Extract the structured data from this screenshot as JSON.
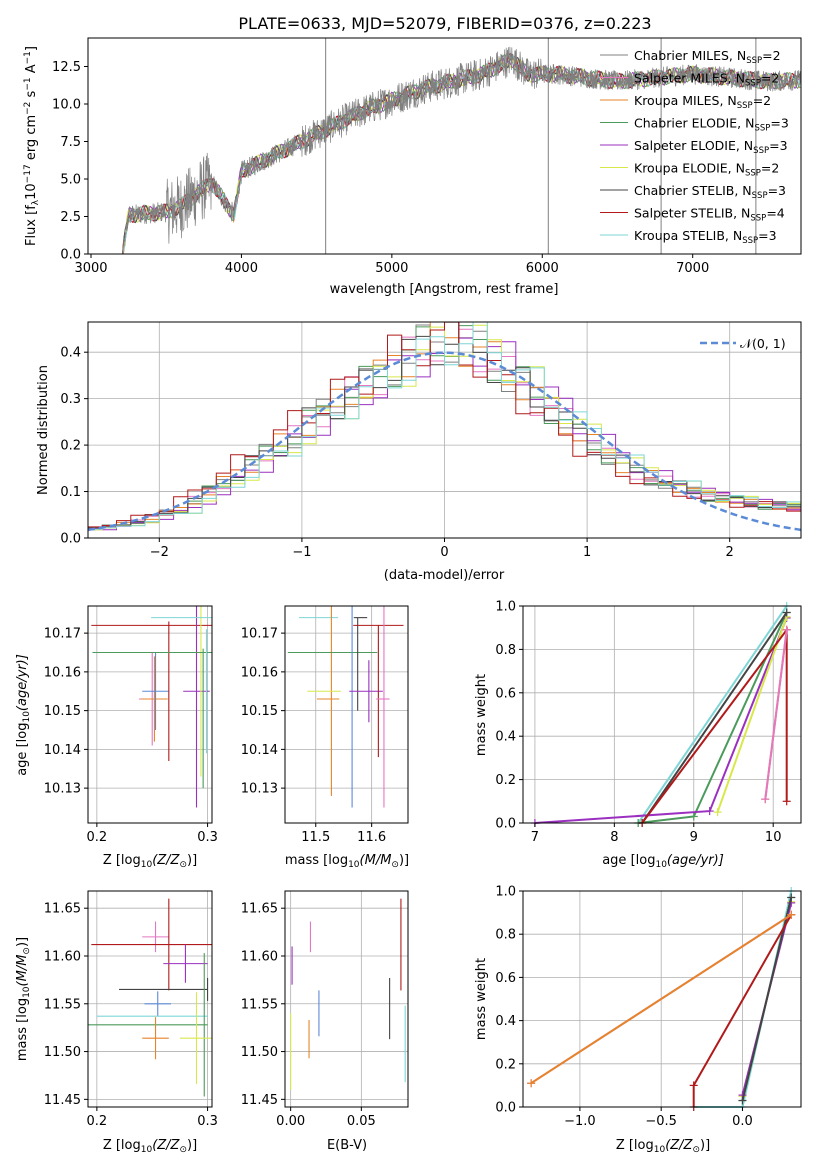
{
  "chart_data": [
    {
      "id": "spectrum",
      "type": "line",
      "title": "PLATE=0633, MJD=52079, FIBERID=0376, z=0.223",
      "xlabel": "wavelength [Angstrom, rest frame]",
      "ylabel_main": "Flux [f",
      "ylabel_sub": "λ",
      "ylabel_rest": "10",
      "ylabel_exp1": "−17",
      "ylabel_mid": " erg cm",
      "ylabel_exp2": "−2",
      "ylabel_mid2": " s",
      "ylabel_exp3": "−1",
      "ylabel_mid3": " A",
      "ylabel_exp4": "−1",
      "ylabel_end": "]",
      "xlim": [
        2980,
        7720
      ],
      "ylim": [
        0,
        14.4
      ],
      "xticks": [
        3000,
        4000,
        5000,
        6000,
        7000
      ],
      "yticks": [
        0.0,
        2.5,
        5.0,
        7.5,
        10.0,
        12.5
      ],
      "ytick_labels": [
        "0.0",
        "2.5",
        "5.0",
        "7.5",
        "10.0",
        "12.5"
      ],
      "grid": false,
      "legend_position": "right",
      "data_color": "#808080",
      "data_knots_x": [
        3210,
        3250,
        3500,
        3600,
        3800,
        3950,
        4000,
        4400,
        4800,
        5200,
        5600,
        5800,
        5900,
        6100,
        6500,
        7000,
        7500,
        7720
      ],
      "data_knots_y": [
        0.0,
        2.6,
        2.8,
        3.2,
        4.8,
        2.6,
        5.5,
        7.5,
        9.5,
        11.0,
        12.0,
        13.0,
        12.0,
        12.0,
        11.5,
        12.0,
        11.5,
        11.6
      ],
      "vertical_lines_x": [
        4560,
        6040,
        6790,
        7420
      ],
      "series": [
        {
          "name": "Chabrier MILES",
          "nssp": "2",
          "color": "#808080"
        },
        {
          "name": "Salpeter MILES",
          "nssp": "2",
          "color": "#e377c2"
        },
        {
          "name": "Kroupa MILES",
          "nssp": "2",
          "color": "#e6842a"
        },
        {
          "name": "Chabrier ELODIE",
          "nssp": "3",
          "color": "#4c9a5c"
        },
        {
          "name": "Salpeter ELODIE",
          "nssp": "3",
          "color": "#9b30c0"
        },
        {
          "name": "Kroupa ELODIE",
          "nssp": "2",
          "color": "#d8e84a"
        },
        {
          "name": "Chabrier STELIB",
          "nssp": "3",
          "color": "#444444"
        },
        {
          "name": "Salpeter STELIB",
          "nssp": "4",
          "color": "#b01a1a"
        },
        {
          "name": "Kroupa STELIB",
          "nssp": "3",
          "color": "#7fd6d6"
        }
      ],
      "legend_suffix_prefix": ", N",
      "legend_suffix_sub": "SSP",
      "legend_suffix_eq": "="
    },
    {
      "id": "residuals",
      "type": "line",
      "xlabel": "(data-model)/error",
      "ylabel": "Normed distribution",
      "xlim": [
        -2.5,
        2.5
      ],
      "ylim": [
        0,
        0.465
      ],
      "xticks": [
        -2,
        -1,
        0,
        1,
        2
      ],
      "xtick_labels": [
        "−2",
        "−1",
        "0",
        "1",
        "2"
      ],
      "yticks": [
        0.0,
        0.1,
        0.2,
        0.3,
        0.4
      ],
      "ytick_labels": [
        "0.0",
        "0.1",
        "0.2",
        "0.3",
        "0.4"
      ],
      "grid": true,
      "legend_position": "top-right",
      "normal_label": "𝒩(0, 1)",
      "normal_color": "#5b8bd6",
      "bin_width": 0.1,
      "hist_shape": [
        0.02,
        0.025,
        0.03,
        0.035,
        0.045,
        0.055,
        0.06,
        0.08,
        0.1,
        0.12,
        0.14,
        0.16,
        0.18,
        0.2,
        0.22,
        0.25,
        0.27,
        0.29,
        0.31,
        0.33,
        0.35,
        0.37,
        0.39,
        0.41,
        0.42,
        0.43,
        0.42,
        0.4,
        0.38,
        0.35,
        0.33,
        0.3,
        0.28,
        0.25,
        0.22,
        0.2,
        0.18,
        0.16,
        0.14,
        0.13,
        0.12,
        0.11,
        0.1,
        0.09,
        0.085,
        0.08,
        0.075,
        0.07,
        0.07,
        0.065
      ]
    },
    {
      "id": "age_vs_Z",
      "type": "errorbar",
      "xlabel": "Z [log",
      "xlabel_sub": "10",
      "xlabel_rest": "(Z/Z",
      "xlabel_sun": "⊙",
      "xlabel_end": ")]",
      "ylabel": "age  [log",
      "ylabel_sub": "10",
      "ylabel_rest": "(age/yr)]",
      "xlim": [
        0.192,
        0.304
      ],
      "ylim": [
        10.121,
        10.177
      ],
      "xticks": [
        0.2,
        0.3
      ],
      "xtick_labels": [
        "0.2",
        "0.3"
      ],
      "yticks": [
        10.13,
        10.14,
        10.15,
        10.16,
        10.17
      ],
      "ytick_labels": [
        "10.13",
        "10.14",
        "10.15",
        "10.16",
        "10.17"
      ],
      "grid": true,
      "points": [
        {
          "x": 0.25,
          "y": 10.153,
          "xerr": 0.012,
          "yerr": 0.012,
          "color": "#e377c2"
        },
        {
          "x": 0.252,
          "y": 10.153,
          "xerr": 0.012,
          "yerr": 0.011,
          "color": "#e6842a"
        },
        {
          "x": 0.253,
          "y": 10.155,
          "xerr": 0.012,
          "yerr": 0.01,
          "color": "#5b8bd6"
        },
        {
          "x": 0.265,
          "y": 10.172,
          "xerr": 0.07,
          "yerr": 0.0,
          "color": "#b01a1a"
        },
        {
          "x": 0.265,
          "y": 10.155,
          "xerr": 0.0,
          "yerr": 0.018,
          "color": "#b01a1a"
        },
        {
          "x": 0.29,
          "y": 10.155,
          "xerr": 0.012,
          "yerr": 0.03,
          "color": "#9b30c0"
        },
        {
          "x": 0.294,
          "y": 10.155,
          "xerr": 0.0,
          "yerr": 0.022,
          "color": "#d8e84a"
        },
        {
          "x": 0.296,
          "y": 10.165,
          "xerr": 0.1,
          "yerr": 0.0,
          "color": "#4c9a5c"
        },
        {
          "x": 0.296,
          "y": 10.148,
          "xerr": 0.0,
          "yerr": 0.018,
          "color": "#4c9a5c"
        },
        {
          "x": 0.299,
          "y": 10.174,
          "xerr": 0.05,
          "yerr": 0.0,
          "color": "#7fd6d6"
        },
        {
          "x": 0.299,
          "y": 10.155,
          "xerr": 0.0,
          "yerr": 0.016,
          "color": "#7fd6d6"
        }
      ]
    },
    {
      "id": "age_vs_mass",
      "type": "errorbar",
      "xlabel": "mass [log",
      "xlabel_sub": "10",
      "xlabel_rest": "(M/M",
      "xlabel_sun": "⊙",
      "xlabel_end": ")]",
      "xlim": [
        11.445,
        11.665
      ],
      "ylim": [
        10.121,
        10.177
      ],
      "xticks": [
        11.5,
        11.6
      ],
      "xtick_labels": [
        "11.5",
        "11.6"
      ],
      "yticks": [
        10.13,
        10.14,
        10.15,
        10.16,
        10.17
      ],
      "ytick_labels": [
        "10.13",
        "10.14",
        "10.15",
        "10.16",
        "10.17"
      ],
      "grid": true,
      "points": [
        {
          "x": 11.505,
          "y": 10.174,
          "xerr": 0.035,
          "yerr": 0.0,
          "color": "#7fd6d6"
        },
        {
          "x": 11.522,
          "y": 10.153,
          "xerr": 0.02,
          "yerr": 0.0,
          "color": "#e6842a"
        },
        {
          "x": 11.528,
          "y": 10.153,
          "xerr": 0.0,
          "yerr": 0.025,
          "color": "#e6842a"
        },
        {
          "x": 11.515,
          "y": 10.155,
          "xerr": 0.03,
          "yerr": 0.0,
          "color": "#d8e84a"
        },
        {
          "x": 11.53,
          "y": 10.165,
          "xerr": 0.08,
          "yerr": 0.0,
          "color": "#4c9a5c"
        },
        {
          "x": 11.565,
          "y": 10.155,
          "xerr": 0.0,
          "yerr": 0.03,
          "color": "#5b8bd6"
        },
        {
          "x": 11.575,
          "y": 10.162,
          "xerr": 0.0,
          "yerr": 0.012,
          "color": "#444444"
        },
        {
          "x": 11.58,
          "y": 10.174,
          "xerr": 0.012,
          "yerr": 0.0,
          "color": "#444444"
        },
        {
          "x": 11.59,
          "y": 10.155,
          "xerr": 0.03,
          "yerr": 0.0,
          "color": "#9b30c0"
        },
        {
          "x": 11.595,
          "y": 10.155,
          "xerr": 0.0,
          "yerr": 0.008,
          "color": "#9b30c0"
        },
        {
          "x": 11.612,
          "y": 10.172,
          "xerr": 0.045,
          "yerr": 0.0,
          "color": "#b01a1a"
        },
        {
          "x": 11.612,
          "y": 10.155,
          "xerr": 0.0,
          "yerr": 0.017,
          "color": "#b01a1a"
        },
        {
          "x": 11.62,
          "y": 10.153,
          "xerr": 0.012,
          "yerr": 0.0,
          "color": "#e377c2"
        },
        {
          "x": 11.622,
          "y": 10.153,
          "xerr": 0.0,
          "yerr": 0.028,
          "color": "#e377c2"
        }
      ]
    },
    {
      "id": "massweight_vs_age",
      "type": "line",
      "xlabel": "age  [log",
      "xlabel_sub": "10",
      "xlabel_rest": "(age/yr)]",
      "ylabel": "mass weight",
      "xlim": [
        6.85,
        10.35
      ],
      "ylim": [
        0,
        1
      ],
      "xticks": [
        7,
        8,
        9,
        10
      ],
      "xtick_labels": [
        "7",
        "8",
        "9",
        "10"
      ],
      "yticks": [
        0.0,
        0.2,
        0.4,
        0.6,
        0.8,
        1.0
      ],
      "ytick_labels": [
        "0.0",
        "0.2",
        "0.4",
        "0.6",
        "0.8",
        "1.0"
      ],
      "grid": true,
      "series": [
        {
          "color": "#7fd6d6",
          "x": [
            8.3,
            10.17
          ],
          "y": [
            0.0,
            1.0
          ]
        },
        {
          "color": "#4c9a5c",
          "x": [
            8.3,
            9.0,
            10.17
          ],
          "y": [
            0.0,
            0.03,
            0.97
          ]
        },
        {
          "color": "#9b30c0",
          "x": [
            7.0,
            9.2,
            10.17
          ],
          "y": [
            0.0,
            0.055,
            0.945
          ]
        },
        {
          "color": "#d8e84a",
          "x": [
            9.3,
            10.17
          ],
          "y": [
            0.05,
            0.95
          ]
        },
        {
          "color": "#444444",
          "x": [
            8.35,
            10.17
          ],
          "y": [
            0.0,
            0.97
          ]
        },
        {
          "color": "#b01a1a",
          "x": [
            8.35,
            10.17,
            10.17
          ],
          "y": [
            0.0,
            0.89,
            0.1
          ]
        },
        {
          "color": "#e6842a",
          "x": [
            9.9,
            10.17
          ],
          "y": [
            0.11,
            0.89
          ]
        },
        {
          "color": "#e377c2",
          "x": [
            9.9,
            10.17
          ],
          "y": [
            0.11,
            0.89
          ]
        }
      ]
    },
    {
      "id": "mass_vs_Z",
      "type": "errorbar",
      "xlabel": "Z [log",
      "xlabel_sub": "10",
      "xlabel_rest": "(Z/Z",
      "xlabel_sun": "⊙",
      "xlabel_end": ")]",
      "ylabel": "mass [log",
      "ylabel_sub": "10",
      "ylabel_rest": "(M/M",
      "ylabel_sun": "⊙",
      "ylabel_end": ")]",
      "xlim": [
        0.192,
        0.304
      ],
      "ylim": [
        11.442,
        11.668
      ],
      "xticks": [
        0.2,
        0.3
      ],
      "xtick_labels": [
        "0.2",
        "0.3"
      ],
      "yticks": [
        11.45,
        11.5,
        11.55,
        11.6,
        11.65
      ],
      "ytick_labels": [
        "11.45",
        "11.50",
        "11.55",
        "11.60",
        "11.65"
      ],
      "grid": true,
      "points": [
        {
          "x": 0.253,
          "y": 11.62,
          "xerr": 0.012,
          "yerr": 0.016,
          "color": "#e377c2"
        },
        {
          "x": 0.265,
          "y": 11.612,
          "xerr": 0.07,
          "yerr": 0.048,
          "color": "#b01a1a"
        },
        {
          "x": 0.28,
          "y": 11.592,
          "xerr": 0.02,
          "yerr": 0.02,
          "color": "#9b30c0"
        },
        {
          "x": 0.26,
          "y": 11.565,
          "xerr": 0.04,
          "yerr": 0.0,
          "color": "#444444"
        },
        {
          "x": 0.3,
          "y": 11.565,
          "xerr": 0.0,
          "yerr": 0.012,
          "color": "#444444"
        },
        {
          "x": 0.255,
          "y": 11.55,
          "xerr": 0.012,
          "yerr": 0.013,
          "color": "#5b8bd6"
        },
        {
          "x": 0.25,
          "y": 11.537,
          "xerr": 0.05,
          "yerr": 0.0,
          "color": "#7fd6d6"
        },
        {
          "x": 0.245,
          "y": 11.528,
          "xerr": 0.055,
          "yerr": 0.0,
          "color": "#4c9a5c"
        },
        {
          "x": 0.297,
          "y": 11.528,
          "xerr": 0.0,
          "yerr": 0.075,
          "color": "#4c9a5c"
        },
        {
          "x": 0.253,
          "y": 11.514,
          "xerr": 0.012,
          "yerr": 0.022,
          "color": "#e6842a"
        },
        {
          "x": 0.29,
          "y": 11.514,
          "xerr": 0.015,
          "yerr": 0.048,
          "color": "#d8e84a"
        }
      ]
    },
    {
      "id": "mass_vs_ebv",
      "type": "errorbar",
      "xlabel": "E(B-V)",
      "xlim": [
        -0.004,
        0.083
      ],
      "ylim": [
        11.442,
        11.668
      ],
      "xticks": [
        0.0,
        0.05
      ],
      "xtick_labels": [
        "0.00",
        "0.05"
      ],
      "yticks": [
        11.45,
        11.5,
        11.55,
        11.6,
        11.65
      ],
      "ytick_labels": [
        "11.45",
        "11.50",
        "11.55",
        "11.60",
        "11.65"
      ],
      "grid": true,
      "points": [
        {
          "x": 0.0,
          "y": 11.5,
          "xerr": 0.0,
          "yerr": 0.04,
          "color": "#d8e84a"
        },
        {
          "x": 0.001,
          "y": 11.59,
          "xerr": 0.0,
          "yerr": 0.02,
          "color": "#9b30c0"
        },
        {
          "x": 0.013,
          "y": 11.513,
          "xerr": 0.0,
          "yerr": 0.02,
          "color": "#e6842a"
        },
        {
          "x": 0.014,
          "y": 11.62,
          "xerr": 0.0,
          "yerr": 0.016,
          "color": "#e377c2"
        },
        {
          "x": 0.02,
          "y": 11.54,
          "xerr": 0.0,
          "yerr": 0.024,
          "color": "#5b8bd6"
        },
        {
          "x": 0.07,
          "y": 11.545,
          "xerr": 0.0,
          "yerr": 0.032,
          "color": "#444444"
        },
        {
          "x": 0.078,
          "y": 11.612,
          "xerr": 0.0,
          "yerr": 0.048,
          "color": "#b01a1a"
        },
        {
          "x": 0.081,
          "y": 11.508,
          "xerr": 0.0,
          "yerr": 0.04,
          "color": "#7fd6d6"
        }
      ]
    },
    {
      "id": "massweight_vs_Z",
      "type": "line",
      "xlabel": "Z [log",
      "xlabel_sub": "10",
      "xlabel_rest": "(Z/Z",
      "xlabel_sun": "⊙",
      "xlabel_end": ")]",
      "ylabel": "mass weight",
      "xlim": [
        -1.35,
        0.36
      ],
      "ylim": [
        0,
        1
      ],
      "xticks": [
        -1.0,
        -0.5,
        0.0
      ],
      "xtick_labels": [
        "−1.0",
        "−0.5",
        "0.0"
      ],
      "yticks": [
        0.0,
        0.2,
        0.4,
        0.6,
        0.8,
        1.0
      ],
      "ytick_labels": [
        "0.0",
        "0.2",
        "0.4",
        "0.6",
        "0.8",
        "1.0"
      ],
      "grid": true,
      "series": [
        {
          "color": "#7fd6d6",
          "x": [
            -0.3,
            0.0,
            0.3
          ],
          "y": [
            0.0,
            0.0,
            1.0
          ]
        },
        {
          "color": "#4c9a5c",
          "x": [
            0.0,
            0.3
          ],
          "y": [
            0.03,
            0.97
          ]
        },
        {
          "color": "#d8e84a",
          "x": [
            0.0,
            0.3
          ],
          "y": [
            0.05,
            0.95
          ]
        },
        {
          "color": "#9b30c0",
          "x": [
            0.0,
            0.3
          ],
          "y": [
            0.055,
            0.945
          ]
        },
        {
          "color": "#444444",
          "x": [
            0.0,
            0.3
          ],
          "y": [
            0.03,
            0.97
          ]
        },
        {
          "color": "#b01a1a",
          "x": [
            -0.3,
            -0.3,
            0.3
          ],
          "y": [
            0.0,
            0.1,
            0.89
          ]
        },
        {
          "color": "#e377c2",
          "x": [
            -1.3,
            0.3
          ],
          "y": [
            0.11,
            0.89
          ]
        },
        {
          "color": "#e6842a",
          "x": [
            -1.3,
            0.3
          ],
          "y": [
            0.11,
            0.89
          ]
        }
      ]
    }
  ]
}
